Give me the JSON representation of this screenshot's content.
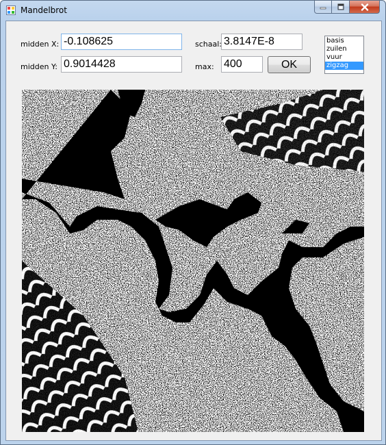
{
  "window": {
    "title": "Mandelbrot",
    "icon": "app-window-icon",
    "controls": {
      "minimize": "minimize-icon",
      "maximize": "maximize-icon",
      "close": "close-icon"
    }
  },
  "form": {
    "midden_x": {
      "label": "midden X:",
      "value": "-0.108625"
    },
    "midden_y": {
      "label": "midden Y:",
      "value": "0.9014428"
    },
    "schaal": {
      "label": "schaal:",
      "value": "3.8147E-8"
    },
    "max": {
      "label": "max:",
      "value": "400"
    },
    "ok_label": "OK"
  },
  "palette_list": {
    "items": [
      "basis",
      "zuilen",
      "vuur",
      "zigzag"
    ],
    "selected": "zigzag"
  },
  "colors": {
    "selection": "#3399ff",
    "fractal_fg": "#000000",
    "fractal_bg": "#ffffff"
  }
}
